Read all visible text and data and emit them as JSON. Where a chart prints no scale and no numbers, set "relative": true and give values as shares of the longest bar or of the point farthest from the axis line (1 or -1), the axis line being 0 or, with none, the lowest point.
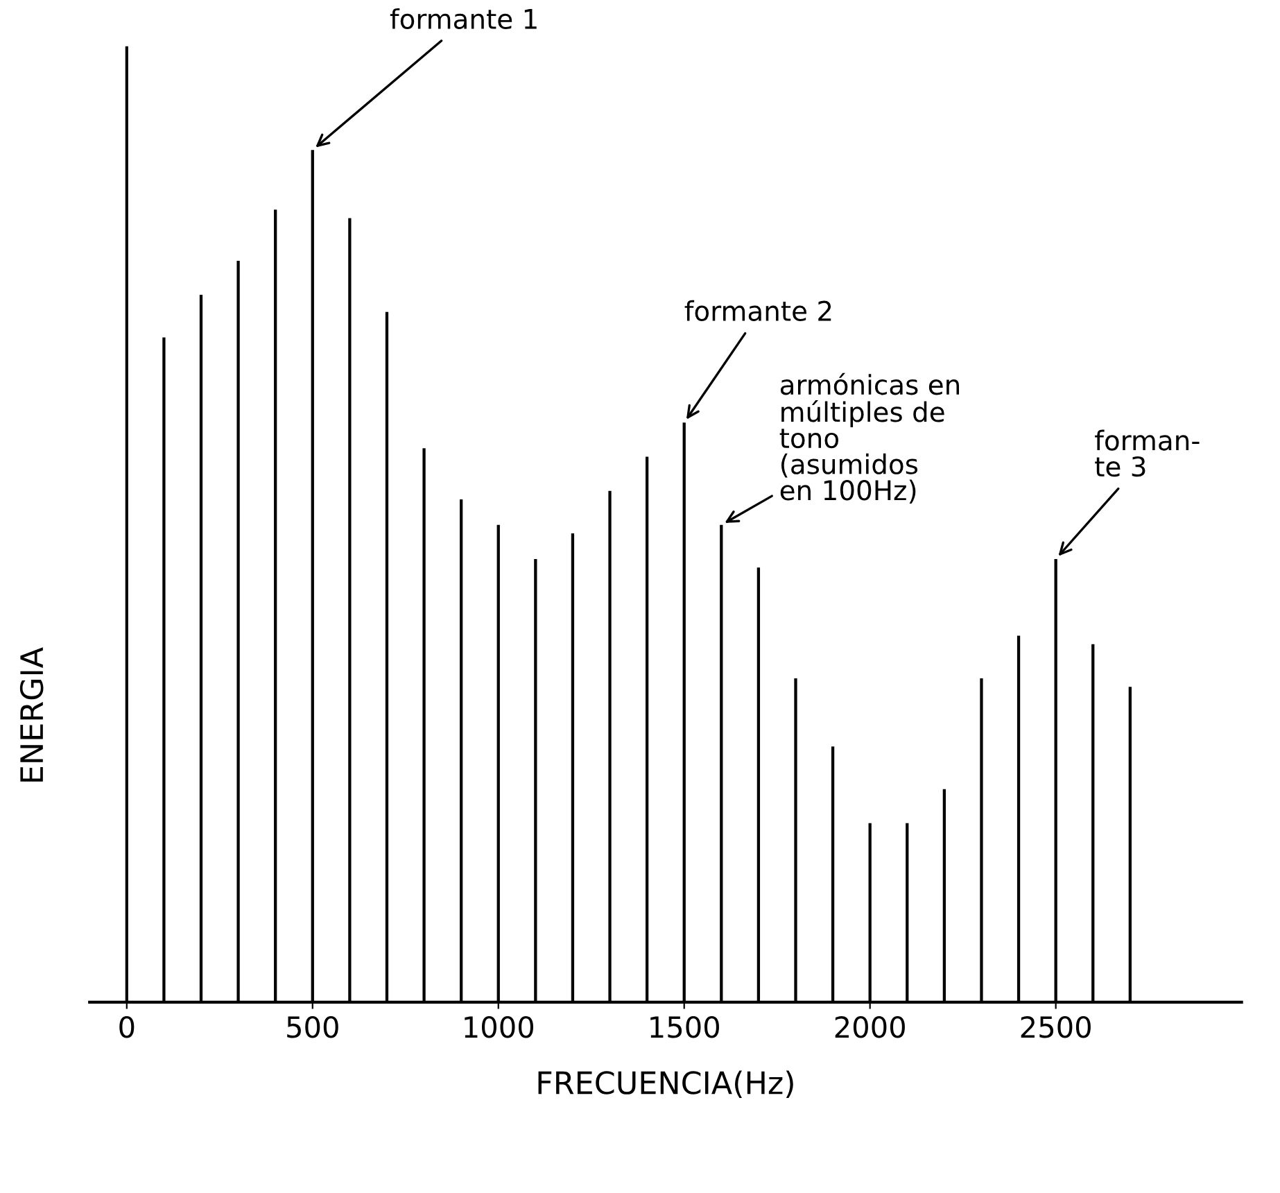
{
  "chart_data": {
    "type": "bar",
    "relative": true,
    "color": "#000000",
    "xlabel": "FRECUENCIA(Hz)",
    "ylabel": "ENERGIA",
    "x": [
      100,
      200,
      300,
      400,
      500,
      600,
      700,
      800,
      900,
      1000,
      1100,
      1200,
      1300,
      1400,
      1500,
      1600,
      1700,
      1800,
      1900,
      2000,
      2100,
      2200,
      2300,
      2400,
      2500,
      2600,
      2700
    ],
    "values": [
      0.78,
      0.83,
      0.87,
      0.93,
      1,
      0.92,
      0.81,
      0.65,
      0.59,
      0.56,
      0.52,
      0.55,
      0.6,
      0.64,
      0.68,
      0.56,
      0.51,
      0.38,
      0.3,
      0.21,
      0.21,
      0.25,
      0.38,
      0.43,
      0.52,
      0.42,
      0.37
    ],
    "xlim": [
      -100,
      3000
    ],
    "xticks": [
      0,
      500,
      1000,
      1500,
      2000,
      2500
    ],
    "annotations": [
      {
        "text": "formante 1",
        "x": 500,
        "y": 1
      },
      {
        "text": "formante 2",
        "x": 1500,
        "y": 0.68
      },
      {
        "text": "armónicas en\nmúltiples de\ntono\n(asumidos\nen 100Hz)",
        "x": 1600,
        "y": 0.56
      },
      {
        "text": "forman-\nte 3",
        "x": 2500,
        "y": 0.52
      }
    ]
  }
}
